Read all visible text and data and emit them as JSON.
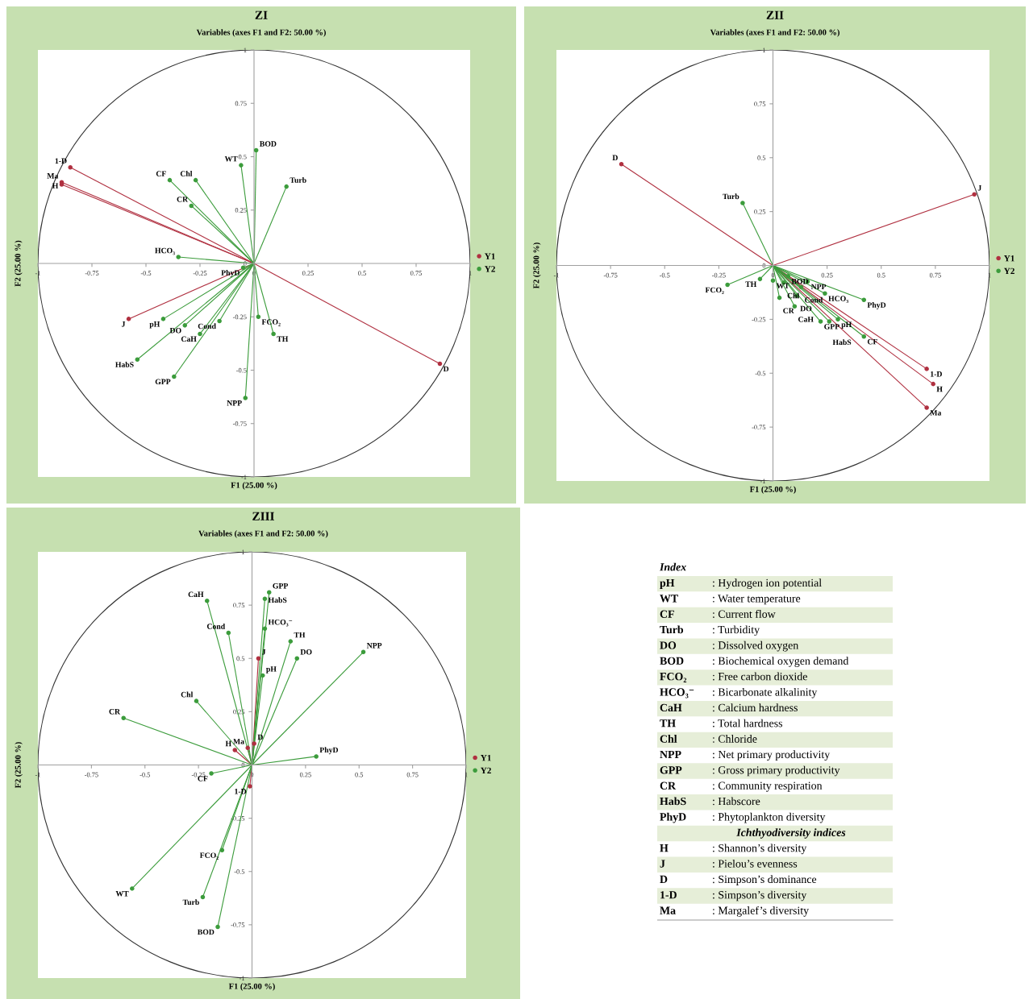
{
  "chart_data": [
    {
      "type": "scatter",
      "title": "ZI",
      "subtitle": "Variables (axes F1 and F2: 50.00 %)",
      "xlabel": "F1 (25.00 %)",
      "ylabel": "F2 (25.00 %)",
      "xlim": [
        -1,
        1
      ],
      "ylim": [
        -1,
        1
      ],
      "xticks": [
        -1,
        -0.75,
        -0.5,
        -0.25,
        0,
        0.25,
        0.5,
        0.75,
        1
      ],
      "yticks": [
        -1,
        -0.75,
        -0.5,
        -0.25,
        0,
        0.25,
        0.5,
        0.75,
        1
      ],
      "marker": "circle",
      "legend": "right",
      "series": [
        {
          "name": "Y1",
          "color": "#b03040",
          "x": [
            -0.85,
            -0.89,
            -0.89,
            -0.58,
            0.86
          ],
          "values": [
            0.45,
            0.38,
            0.37,
            -0.26,
            -0.47
          ]
        },
        {
          "name": "Y2",
          "color": "#3c9c3c",
          "x": [
            0.01,
            -0.06,
            -0.39,
            -0.27,
            -0.29,
            0.15,
            -0.35,
            -0.05,
            -0.42,
            -0.32,
            -0.25,
            -0.16,
            0.02,
            0.09,
            -0.54,
            -0.37,
            -0.04
          ],
          "values": [
            0.53,
            0.46,
            0.39,
            0.39,
            0.27,
            0.36,
            0.03,
            -0.02,
            -0.26,
            -0.29,
            -0.33,
            -0.27,
            -0.25,
            -0.33,
            -0.45,
            -0.53,
            -0.63
          ]
        }
      ],
      "annotations": [
        {
          "text": "1-D",
          "x": -0.85,
          "y": 0.45
        },
        {
          "text": "Ma",
          "x": -0.89,
          "y": 0.38
        },
        {
          "text": "H",
          "x": -0.89,
          "y": 0.37
        },
        {
          "text": "J",
          "x": -0.58,
          "y": -0.26
        },
        {
          "text": "D",
          "x": 0.86,
          "y": -0.47
        },
        {
          "text": "BOD",
          "x": 0.01,
          "y": 0.53
        },
        {
          "text": "WT",
          "x": -0.06,
          "y": 0.46
        },
        {
          "text": "CF",
          "x": -0.39,
          "y": 0.39
        },
        {
          "text": "Chl",
          "x": -0.27,
          "y": 0.39
        },
        {
          "text": "CR",
          "x": -0.29,
          "y": 0.27
        },
        {
          "text": "Turb",
          "x": 0.15,
          "y": 0.36
        },
        {
          "text": "HCO₃",
          "x": -0.35,
          "y": 0.03
        },
        {
          "text": "PhyD",
          "x": -0.05,
          "y": -0.02
        },
        {
          "text": "pH",
          "x": -0.42,
          "y": -0.26
        },
        {
          "text": "DO",
          "x": -0.32,
          "y": -0.29
        },
        {
          "text": "CaH",
          "x": -0.25,
          "y": -0.33
        },
        {
          "text": "Cond",
          "x": -0.16,
          "y": -0.27
        },
        {
          "text": "FCO₂",
          "x": 0.02,
          "y": -0.25
        },
        {
          "text": "TH",
          "x": 0.09,
          "y": -0.33
        },
        {
          "text": "HabS",
          "x": -0.54,
          "y": -0.45
        },
        {
          "text": "GPP",
          "x": -0.37,
          "y": -0.53
        },
        {
          "text": "NPP",
          "x": -0.04,
          "y": -0.63
        }
      ]
    },
    {
      "type": "scatter",
      "title": "ZII",
      "subtitle": "Variables (axes F1 and F2: 50.00 %)",
      "xlabel": "F1 (25.00 %)",
      "ylabel": "F2 (25.00 %)",
      "xlim": [
        -1,
        1
      ],
      "ylim": [
        -1,
        1
      ],
      "xticks": [
        -1,
        -0.75,
        -0.5,
        -0.25,
        0,
        0.25,
        0.5,
        0.75,
        1
      ],
      "yticks": [
        -1,
        -0.75,
        -0.5,
        -0.25,
        0,
        0.25,
        0.5,
        0.75,
        1
      ],
      "marker": "circle",
      "legend": "right",
      "series": [
        {
          "name": "Y1",
          "color": "#b03040",
          "x": [
            -0.7,
            0.93,
            0.71,
            0.74,
            0.71
          ],
          "values": [
            0.47,
            0.33,
            -0.48,
            -0.55,
            -0.66
          ]
        },
        {
          "name": "Y2",
          "color": "#3c9c3c",
          "x": [
            -0.14,
            -0.21,
            -0.06,
            0.0,
            0.05,
            0.07,
            0.16,
            0.13,
            0.24,
            0.42,
            0.03,
            0.11,
            0.1,
            0.3,
            0.22,
            0.26,
            0.42
          ],
          "values": [
            0.29,
            -0.09,
            -0.063,
            -0.07,
            -0.08,
            -0.05,
            -0.075,
            -0.1,
            -0.13,
            -0.16,
            -0.15,
            -0.14,
            -0.19,
            -0.25,
            -0.26,
            -0.26,
            -0.33
          ]
        }
      ],
      "annotations": [
        {
          "text": "D",
          "x": -0.7,
          "y": 0.47
        },
        {
          "text": "J",
          "x": 0.93,
          "y": 0.33
        },
        {
          "text": "1-D",
          "x": 0.71,
          "y": -0.48
        },
        {
          "text": "H",
          "x": 0.74,
          "y": -0.55
        },
        {
          "text": "Ma",
          "x": 0.71,
          "y": -0.66
        },
        {
          "text": "Turb",
          "x": -0.14,
          "y": 0.29
        },
        {
          "text": "FCO₂",
          "x": -0.21,
          "y": -0.09
        },
        {
          "text": "TH",
          "x": -0.06,
          "y": -0.063
        },
        {
          "text": "WT",
          "x": 0.0,
          "y": -0.07
        },
        {
          "text": "Chl",
          "x": 0.05,
          "y": -0.08
        },
        {
          "text": "BOD",
          "x": 0.07,
          "y": -0.05
        },
        {
          "text": "NPP",
          "x": 0.16,
          "y": -0.075
        },
        {
          "text": "Cond",
          "x": 0.13,
          "y": -0.1
        },
        {
          "text": "HCO₃",
          "x": 0.24,
          "y": -0.13
        },
        {
          "text": "PhyD",
          "x": 0.42,
          "y": -0.16
        },
        {
          "text": "CR",
          "x": 0.03,
          "y": -0.15
        },
        {
          "text": "DO",
          "x": 0.11,
          "y": -0.14
        },
        {
          "text": "CaH",
          "x": 0.1,
          "y": -0.19
        },
        {
          "text": "pH",
          "x": 0.3,
          "y": -0.25
        },
        {
          "text": "GPP",
          "x": 0.22,
          "y": -0.26
        },
        {
          "text": "HabS",
          "x": 0.26,
          "y": -0.26
        },
        {
          "text": "CF",
          "x": 0.42,
          "y": -0.33
        }
      ]
    },
    {
      "type": "scatter",
      "title": "ZIII",
      "subtitle": "Variables (axes F1 and F2: 50.00 %)",
      "xlabel": "F1 (25.00 %)",
      "ylabel": "F2 (25.00 %)",
      "xlim": [
        -1,
        1
      ],
      "ylim": [
        -1,
        1
      ],
      "xticks": [
        -1,
        -0.75,
        -0.5,
        -0.25,
        0,
        0.25,
        0.5,
        0.75,
        1
      ],
      "yticks": [
        -1,
        -0.75,
        -0.5,
        -0.25,
        0,
        0.25,
        0.5,
        0.75,
        1
      ],
      "marker": "circle",
      "legend": "right",
      "series": [
        {
          "name": "Y1",
          "color": "#b03040",
          "x": [
            0.03,
            -0.02,
            0.01,
            -0.08,
            -0.01
          ],
          "values": [
            0.5,
            0.08,
            0.1,
            0.07,
            -0.1
          ]
        },
        {
          "name": "Y2",
          "color": "#3c9c3c",
          "x": [
            0.08,
            0.06,
            -0.21,
            -0.11,
            0.06,
            0.18,
            0.21,
            0.52,
            0.05,
            -0.26,
            -0.6,
            0.3,
            -0.19,
            -0.14,
            -0.56,
            -0.23,
            -0.16
          ],
          "values": [
            0.81,
            0.78,
            0.77,
            0.62,
            0.64,
            0.58,
            0.5,
            0.53,
            0.42,
            0.3,
            0.22,
            0.04,
            -0.04,
            -0.4,
            -0.58,
            -0.62,
            -0.76
          ]
        }
      ],
      "annotations": [
        {
          "text": "J",
          "x": 0.03,
          "y": 0.5
        },
        {
          "text": "Ma",
          "x": -0.02,
          "y": 0.08
        },
        {
          "text": "D",
          "x": 0.01,
          "y": 0.1
        },
        {
          "text": "H",
          "x": -0.08,
          "y": 0.07
        },
        {
          "text": "1-D",
          "x": -0.01,
          "y": -0.1
        },
        {
          "text": "GPP",
          "x": 0.08,
          "y": 0.81
        },
        {
          "text": "HabS",
          "x": 0.06,
          "y": 0.78
        },
        {
          "text": "CaH",
          "x": -0.21,
          "y": 0.77
        },
        {
          "text": "Cond",
          "x": -0.11,
          "y": 0.62
        },
        {
          "text": "HCO₃⁻",
          "x": 0.06,
          "y": 0.64
        },
        {
          "text": "TH",
          "x": 0.18,
          "y": 0.58
        },
        {
          "text": "DO",
          "x": 0.21,
          "y": 0.5
        },
        {
          "text": "NPP",
          "x": 0.52,
          "y": 0.53
        },
        {
          "text": "pH",
          "x": 0.05,
          "y": 0.42
        },
        {
          "text": "Chl",
          "x": -0.26,
          "y": 0.3
        },
        {
          "text": "CR",
          "x": -0.6,
          "y": 0.22
        },
        {
          "text": "PhyD",
          "x": 0.3,
          "y": 0.04
        },
        {
          "text": "CF",
          "x": -0.19,
          "y": -0.04
        },
        {
          "text": "FCO₂",
          "x": -0.14,
          "y": -0.4
        },
        {
          "text": "WT",
          "x": -0.56,
          "y": -0.58
        },
        {
          "text": "Turb",
          "x": -0.23,
          "y": -0.62
        },
        {
          "text": "BOD",
          "x": -0.16,
          "y": -0.76
        }
      ]
    },
    {
      "type": "other",
      "title": "Index",
      "annotations": [
        "pH",
        ": Hydrogen ion potential",
        "WT",
        ": Water temperature",
        "CF",
        ": Current flow",
        "Turb",
        ": Turbidity",
        "DO",
        ": Dissolved oxygen",
        "BOD",
        ": Biochemical oxygen demand",
        "FCO₂",
        ": Free carbon dioxide",
        "HCO₃⁻",
        ": Bicarbonate alkalinity",
        "CaH",
        ": Calcium hardness",
        "TH",
        ": Total hardness",
        "Chl",
        ": Chloride",
        "NPP",
        ": Net primary productivity",
        "GPP",
        ": Gross primary productivity",
        "CR",
        ": Community respiration",
        "HabS",
        ": Habscore",
        "PhyD",
        ": Phytoplankton diversity",
        "Ichthyodiversity indices",
        "H",
        ": Shannon’s diversity",
        "J",
        ": Pielou’s evenness",
        "D",
        ": Simpson’s dominance",
        "1-D",
        ": Simpson’s diversity",
        "Ma",
        ": Margalef’s diversity"
      ]
    }
  ]
}
